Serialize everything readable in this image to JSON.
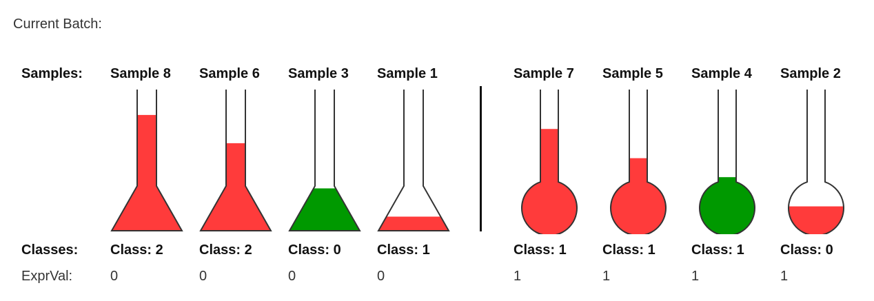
{
  "title": "Current Batch:",
  "row_labels": {
    "samples": "Samples:",
    "classes": "Classes:",
    "exprval": "ExprVal:"
  },
  "colors": {
    "red": "#ff3b3b",
    "green": "#009900",
    "outline": "#333333"
  },
  "groups": [
    {
      "samples": [
        {
          "name": "Sample 8",
          "class_label": "Class: 2",
          "expr_val": "0",
          "shape": "flask",
          "fill_level": 0.82,
          "color": "red"
        },
        {
          "name": "Sample 6",
          "class_label": "Class: 2",
          "expr_val": "0",
          "shape": "flask",
          "fill_level": 0.62,
          "color": "red"
        },
        {
          "name": "Sample 3",
          "class_label": "Class: 0",
          "expr_val": "0",
          "shape": "flask",
          "fill_level": 0.3,
          "color": "green"
        },
        {
          "name": "Sample 1",
          "class_label": "Class: 1",
          "expr_val": "0",
          "shape": "flask",
          "fill_level": 0.1,
          "color": "red"
        }
      ]
    },
    {
      "samples": [
        {
          "name": "Sample 7",
          "class_label": "Class: 1",
          "expr_val": "1",
          "shape": "round",
          "fill_level": 0.73,
          "color": "red"
        },
        {
          "name": "Sample 5",
          "class_label": "Class: 1",
          "expr_val": "1",
          "shape": "round",
          "fill_level": 0.53,
          "color": "red"
        },
        {
          "name": "Sample 4",
          "class_label": "Class: 1",
          "expr_val": "1",
          "shape": "round",
          "fill_level": 0.4,
          "color": "green"
        },
        {
          "name": "Sample 2",
          "class_label": "Class: 0",
          "expr_val": "1",
          "shape": "round",
          "fill_level": 0.2,
          "color": "red"
        }
      ]
    }
  ]
}
